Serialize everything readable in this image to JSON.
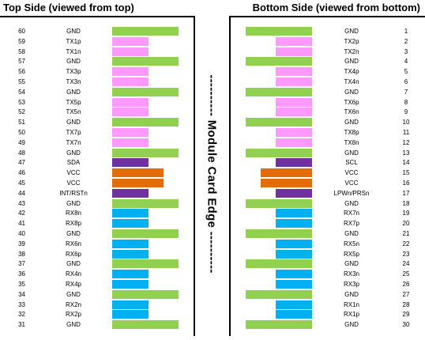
{
  "titles": {
    "left": "Top Side (viewed from top)",
    "right": "Bottom Side (viewed from bottom)"
  },
  "edge_label": "---------- Module Card Edge ----------",
  "colors": {
    "green": "#92d050",
    "pink": "#ff99ff",
    "purple": "#7030a0",
    "orange": "#e36c0a",
    "blue": "#00b0f0"
  },
  "top_pins": [
    {
      "pin": "60",
      "signal": "GND",
      "color": "green",
      "type": "ground"
    },
    {
      "pin": "59",
      "signal": "TX1p",
      "color": "pink",
      "type": "tx"
    },
    {
      "pin": "58",
      "signal": "TX1n",
      "color": "pink",
      "type": "tx"
    },
    {
      "pin": "57",
      "signal": "GND",
      "color": "green",
      "type": "ground"
    },
    {
      "pin": "56",
      "signal": "TX3p",
      "color": "pink",
      "type": "tx"
    },
    {
      "pin": "55",
      "signal": "TX3n",
      "color": "pink",
      "type": "tx"
    },
    {
      "pin": "54",
      "signal": "GND",
      "color": "green",
      "type": "ground"
    },
    {
      "pin": "53",
      "signal": "TX5p",
      "color": "pink",
      "type": "tx"
    },
    {
      "pin": "52",
      "signal": "TX5n",
      "color": "pink",
      "type": "tx"
    },
    {
      "pin": "51",
      "signal": "GND",
      "color": "green",
      "type": "ground"
    },
    {
      "pin": "50",
      "signal": "TX7p",
      "color": "pink",
      "type": "tx"
    },
    {
      "pin": "49",
      "signal": "TX7n",
      "color": "pink",
      "type": "tx"
    },
    {
      "pin": "48",
      "signal": "GND",
      "color": "green",
      "type": "ground"
    },
    {
      "pin": "47",
      "signal": "SDA",
      "color": "purple",
      "type": "ctrl"
    },
    {
      "pin": "46",
      "signal": "VCC",
      "color": "orange",
      "type": "power"
    },
    {
      "pin": "45",
      "signal": "VCC",
      "color": "orange",
      "type": "power"
    },
    {
      "pin": "44",
      "signal": "INT/RSTn",
      "color": "purple",
      "type": "ctrl"
    },
    {
      "pin": "43",
      "signal": "GND",
      "color": "green",
      "type": "ground"
    },
    {
      "pin": "42",
      "signal": "RX8n",
      "color": "blue",
      "type": "rx"
    },
    {
      "pin": "41",
      "signal": "RX8p",
      "color": "blue",
      "type": "rx"
    },
    {
      "pin": "40",
      "signal": "GND",
      "color": "green",
      "type": "ground"
    },
    {
      "pin": "39",
      "signal": "RX6n",
      "color": "blue",
      "type": "rx"
    },
    {
      "pin": "38",
      "signal": "RX6p",
      "color": "blue",
      "type": "rx"
    },
    {
      "pin": "37",
      "signal": "GND",
      "color": "green",
      "type": "ground"
    },
    {
      "pin": "36",
      "signal": "RX4n",
      "color": "blue",
      "type": "rx"
    },
    {
      "pin": "35",
      "signal": "RX4p",
      "color": "blue",
      "type": "rx"
    },
    {
      "pin": "34",
      "signal": "GND",
      "color": "green",
      "type": "ground"
    },
    {
      "pin": "33",
      "signal": "RX2n",
      "color": "blue",
      "type": "rx"
    },
    {
      "pin": "32",
      "signal": "RX2p",
      "color": "blue",
      "type": "rx"
    },
    {
      "pin": "31",
      "signal": "GND",
      "color": "green",
      "type": "ground"
    }
  ],
  "bottom_pins": [
    {
      "pin": "1",
      "signal": "GND",
      "color": "green",
      "type": "ground"
    },
    {
      "pin": "2",
      "signal": "TX2p",
      "color": "pink",
      "type": "tx"
    },
    {
      "pin": "3",
      "signal": "TX2n",
      "color": "pink",
      "type": "tx"
    },
    {
      "pin": "4",
      "signal": "GND",
      "color": "green",
      "type": "ground"
    },
    {
      "pin": "5",
      "signal": "TX4p",
      "color": "pink",
      "type": "tx"
    },
    {
      "pin": "6",
      "signal": "TX4n",
      "color": "pink",
      "type": "tx"
    },
    {
      "pin": "7",
      "signal": "GND",
      "color": "green",
      "type": "ground"
    },
    {
      "pin": "8",
      "signal": "TX6p",
      "color": "pink",
      "type": "tx"
    },
    {
      "pin": "9",
      "signal": "TX6n",
      "color": "pink",
      "type": "tx"
    },
    {
      "pin": "10",
      "signal": "GND",
      "color": "green",
      "type": "ground"
    },
    {
      "pin": "11",
      "signal": "TX8p",
      "color": "pink",
      "type": "tx"
    },
    {
      "pin": "12",
      "signal": "TX8n",
      "color": "pink",
      "type": "tx"
    },
    {
      "pin": "13",
      "signal": "GND",
      "color": "green",
      "type": "ground"
    },
    {
      "pin": "14",
      "signal": "SCL",
      "color": "purple",
      "type": "ctrl"
    },
    {
      "pin": "15",
      "signal": "VCC",
      "color": "orange",
      "type": "power"
    },
    {
      "pin": "16",
      "signal": "VCC",
      "color": "orange",
      "type": "power"
    },
    {
      "pin": "17",
      "signal": "LPWn/PRSn",
      "color": "purple",
      "type": "ctrl"
    },
    {
      "pin": "18",
      "signal": "GND",
      "color": "green",
      "type": "ground"
    },
    {
      "pin": "19",
      "signal": "RX7n",
      "color": "blue",
      "type": "rx"
    },
    {
      "pin": "20",
      "signal": "RX7p",
      "color": "blue",
      "type": "rx"
    },
    {
      "pin": "21",
      "signal": "GND",
      "color": "green",
      "type": "ground"
    },
    {
      "pin": "22",
      "signal": "RX5n",
      "color": "blue",
      "type": "rx"
    },
    {
      "pin": "23",
      "signal": "RX5p",
      "color": "blue",
      "type": "rx"
    },
    {
      "pin": "24",
      "signal": "GND",
      "color": "green",
      "type": "ground"
    },
    {
      "pin": "25",
      "signal": "RX3n",
      "color": "blue",
      "type": "rx"
    },
    {
      "pin": "26",
      "signal": "RX3p",
      "color": "blue",
      "type": "rx"
    },
    {
      "pin": "27",
      "signal": "GND",
      "color": "green",
      "type": "ground"
    },
    {
      "pin": "28",
      "signal": "RX1n",
      "color": "blue",
      "type": "rx"
    },
    {
      "pin": "29",
      "signal": "RX1p",
      "color": "blue",
      "type": "rx"
    },
    {
      "pin": "30",
      "signal": "GND",
      "color": "green",
      "type": "ground"
    }
  ]
}
